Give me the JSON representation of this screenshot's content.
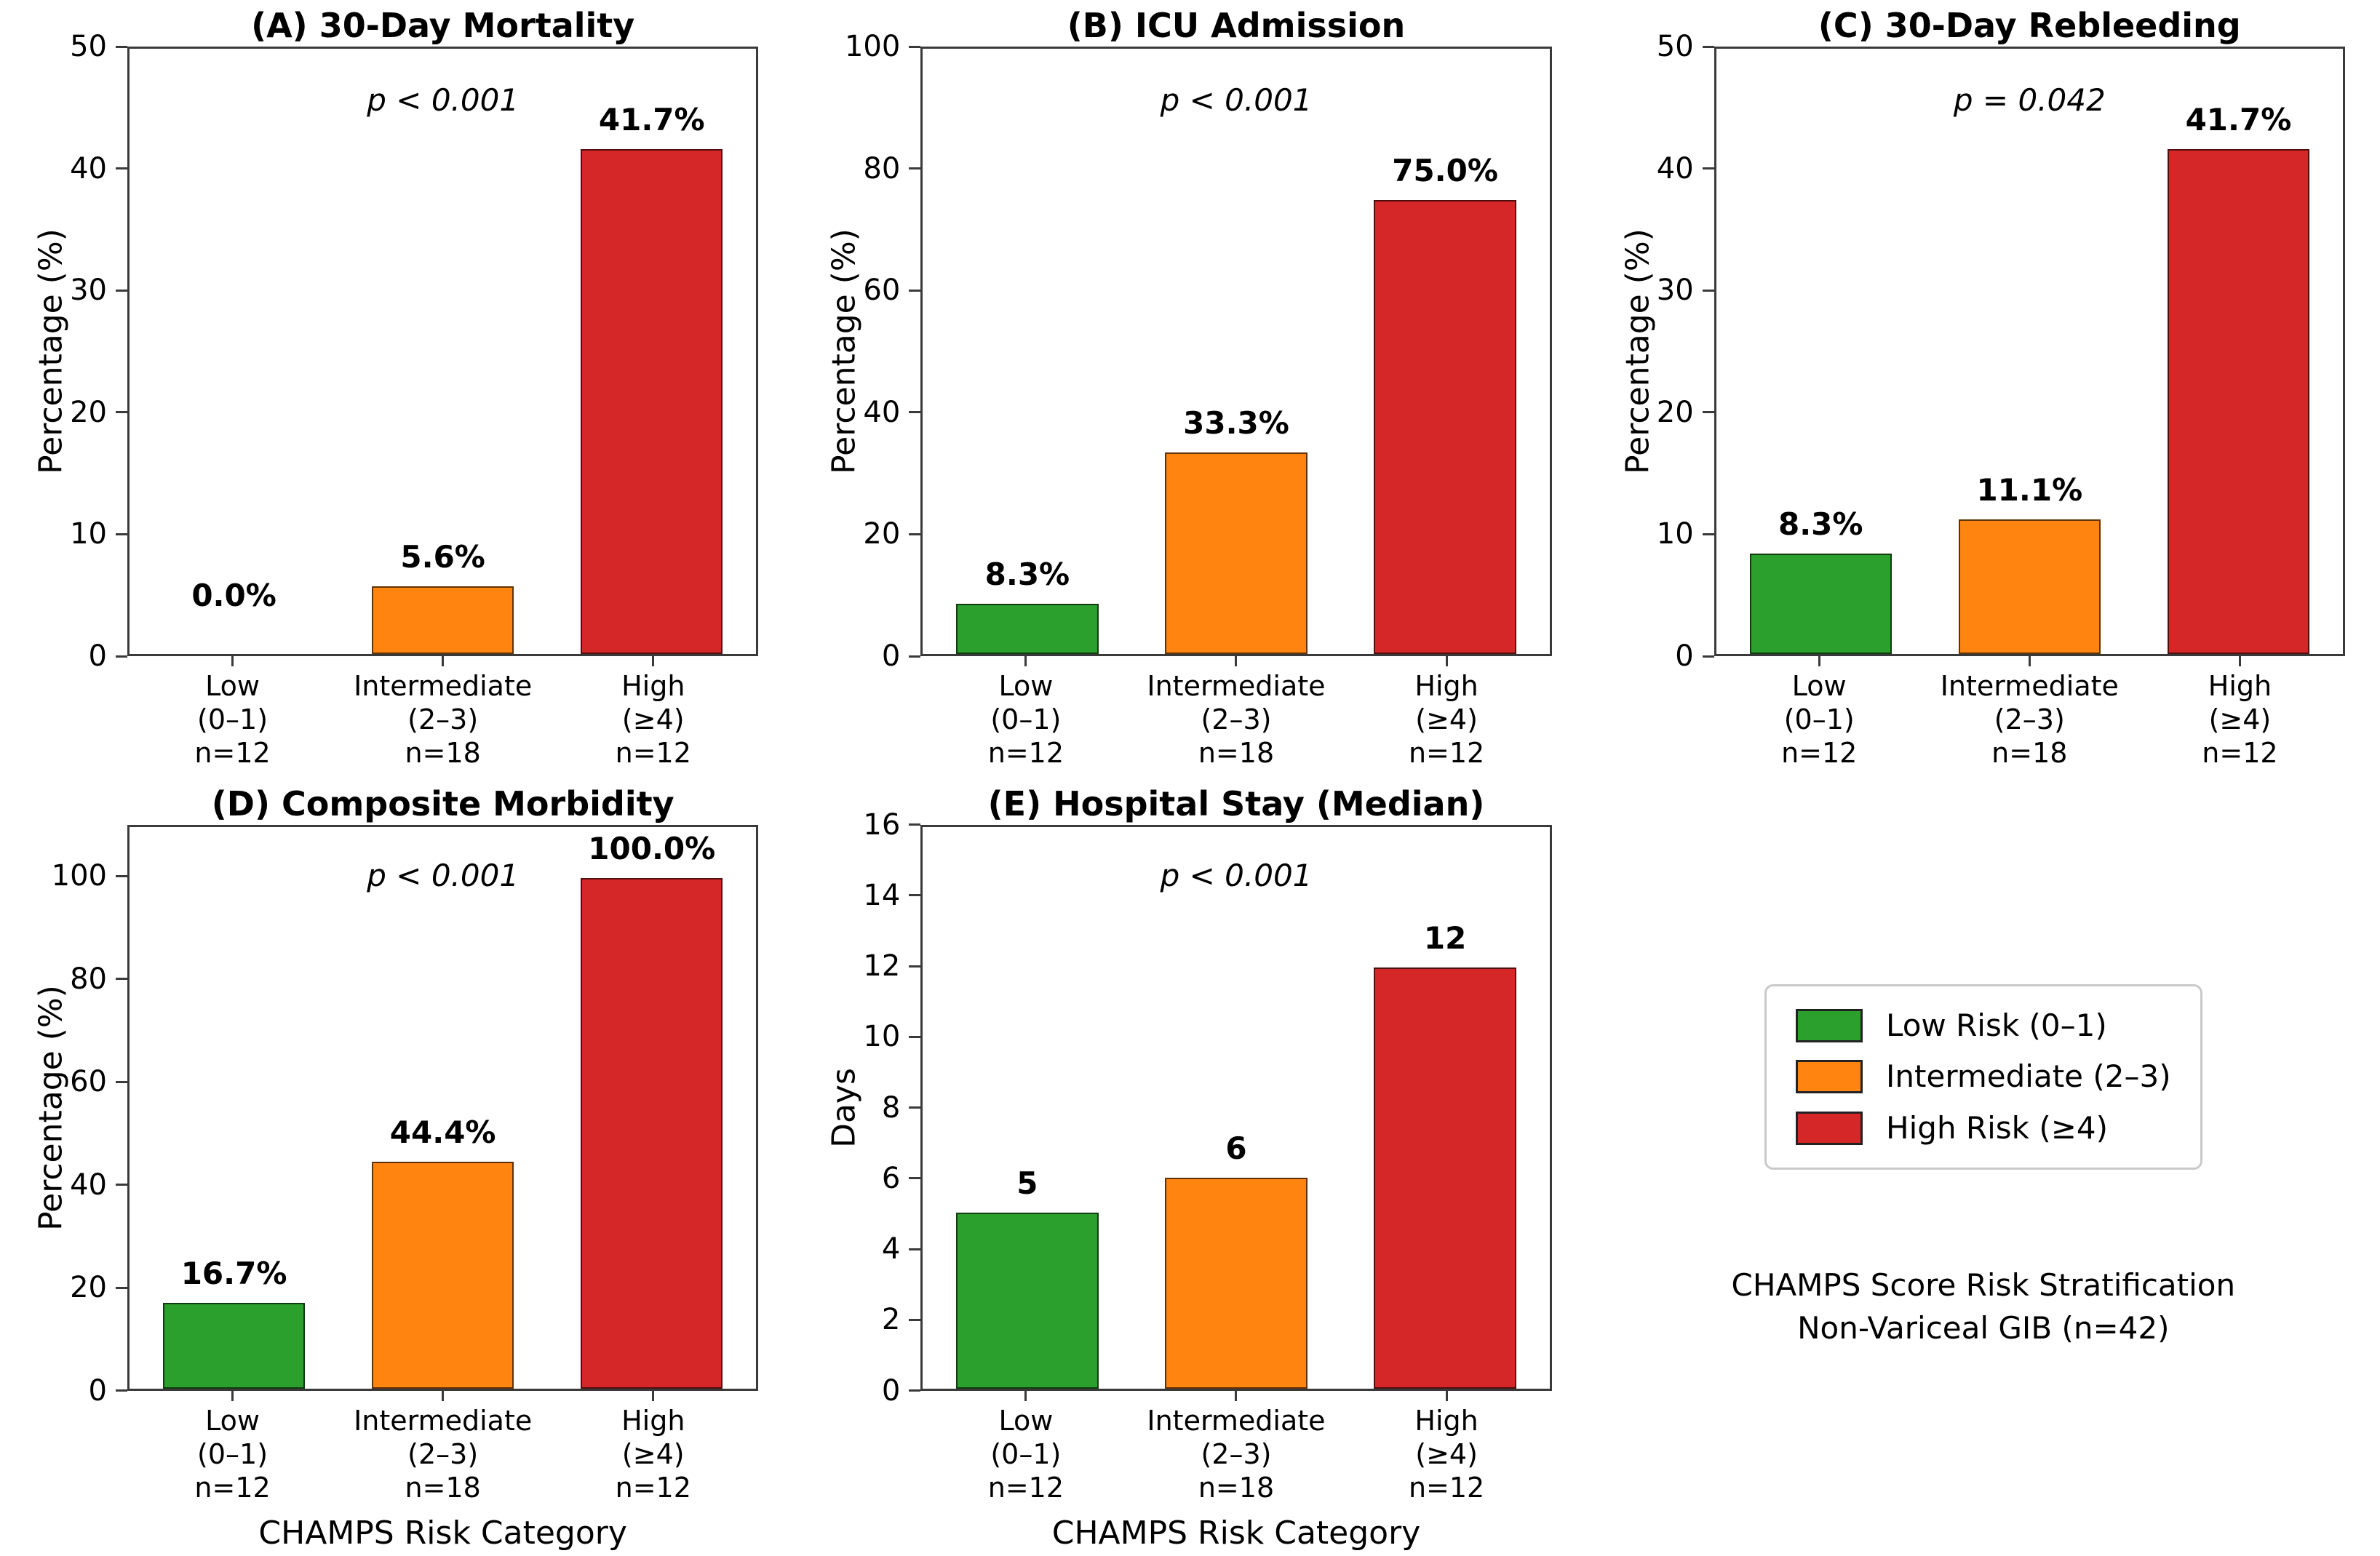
{
  "figure": {
    "background": "#ffffff"
  },
  "chart_data": {
    "type": "bar",
    "layout": "grid 2 rows x 3 columns; panels A-E are bar charts; bottom-right cell holds legend and caption; no gridlines; all four spines drawn",
    "categories": [
      {
        "name": "Low",
        "range": "(0–1)",
        "n": "n=12"
      },
      {
        "name": "Intermediate",
        "range": "(2–3)",
        "n": "n=18"
      },
      {
        "name": "High",
        "range": "(≥4)",
        "n": "n=12"
      }
    ],
    "bar_colors": [
      "#2ca02c",
      "#ff8410",
      "#d62728"
    ],
    "panels": [
      {
        "id": "A",
        "title": "(A) 30-Day Mortality",
        "p_label": "p < 0.001",
        "ylabel": "Percentage (%)",
        "xlabel": "",
        "ymax": 50,
        "ytick_step": 10,
        "ytick_max": 50,
        "values": [
          0.0,
          5.6,
          41.7
        ],
        "value_labels": [
          "0.0%",
          "5.6%",
          "41.7%"
        ]
      },
      {
        "id": "B",
        "title": "(B) ICU Admission",
        "p_label": "p < 0.001",
        "ylabel": "Percentage (%)",
        "xlabel": "",
        "ymax": 100,
        "ytick_step": 20,
        "ytick_max": 100,
        "values": [
          8.3,
          33.3,
          75.0
        ],
        "value_labels": [
          "8.3%",
          "33.3%",
          "75.0%"
        ]
      },
      {
        "id": "C",
        "title": "(C) 30-Day Rebleeding",
        "p_label": "p = 0.042",
        "ylabel": "Percentage (%)",
        "xlabel": "",
        "ymax": 50,
        "ytick_step": 10,
        "ytick_max": 50,
        "values": [
          8.3,
          11.1,
          41.7
        ],
        "value_labels": [
          "8.3%",
          "11.1%",
          "41.7%"
        ]
      },
      {
        "id": "D",
        "title": "(D) Composite Morbidity",
        "p_label": "p < 0.001",
        "ylabel": "Percentage (%)",
        "xlabel": "CHAMPS Risk Category",
        "ymax": 110,
        "ytick_step": 20,
        "ytick_max": 100,
        "values": [
          16.7,
          44.4,
          100.0
        ],
        "value_labels": [
          "16.7%",
          "44.4%",
          "100.0%"
        ]
      },
      {
        "id": "E",
        "title": "(E) Hospital Stay (Median)",
        "p_label": "p < 0.001",
        "ylabel": "Days",
        "xlabel": "CHAMPS Risk Category",
        "ymax": 16,
        "ytick_step": 2,
        "ytick_max": 16,
        "values": [
          5,
          6,
          12
        ],
        "value_labels": [
          "5",
          "6",
          "12"
        ]
      }
    ],
    "legend": {
      "items": [
        {
          "label": "Low Risk (0–1)",
          "color": "#2ca02c"
        },
        {
          "label": "Intermediate (2–3)",
          "color": "#ff8410"
        },
        {
          "label": "High Risk (≥4)",
          "color": "#d62728"
        }
      ]
    },
    "annotation": {
      "line1": "CHAMPS Score Risk Stratification",
      "line2": "Non-Variceal GIB (n=42)"
    }
  },
  "style_colors": {
    "spine": "#3a3a3a",
    "bar_edge": "rgba(0,0,0,0.62)",
    "legend_border": "#c9c9c9",
    "text": "#000000"
  }
}
